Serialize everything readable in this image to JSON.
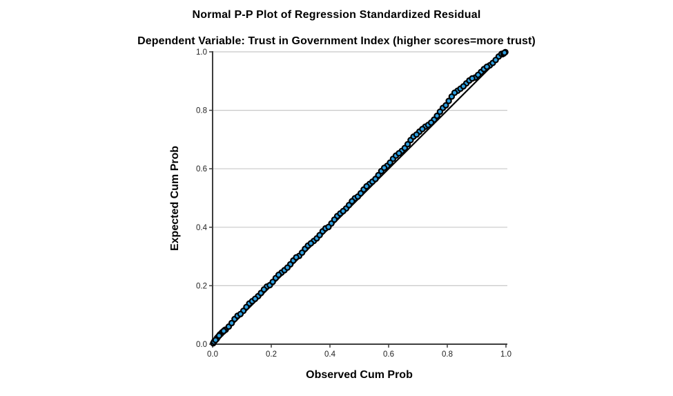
{
  "chart": {
    "title": "Normal P-P Plot of Regression Standardized Residual",
    "subtitle": "Dependent Variable: Trust in Government Index (higher scores=more trust)",
    "xlabel": "Observed Cum Prob",
    "ylabel": "Expected Cum Prob"
  },
  "chart_data": {
    "type": "scatter",
    "title": "Normal P-P Plot of Regression Standardized Residual",
    "subtitle": "Dependent Variable: Trust in Government Index (higher scores=more trust)",
    "xlabel": "Observed Cum Prob",
    "ylabel": "Expected Cum Prob",
    "xlim": [
      0.0,
      1.0
    ],
    "ylim": [
      0.0,
      1.0
    ],
    "x_tick_labels": [
      "0.0",
      "0.2",
      "0.4",
      "0.6",
      "0.8",
      "1.0"
    ],
    "y_tick_labels": [
      "0.0",
      "0.2",
      "0.4",
      "0.6",
      "0.8",
      "1.0"
    ],
    "grid": "horizontal-only",
    "legend": "none",
    "reference_line": {
      "type": "identity",
      "from": [
        0,
        0
      ],
      "to": [
        1,
        1
      ]
    },
    "colors": {
      "marker_fill": "#2d9fe0",
      "marker_stroke": "#000000",
      "reference_line": "#000000",
      "gridline": "#c8c8c8",
      "axis": "#3c3c3c",
      "tick_text": "#1f1f1f",
      "title_text": "#000000",
      "background": "#ffffff"
    },
    "series": [
      {
        "name": "Regression Standardized Residual",
        "points": [
          [
            0.002,
            0.003
          ],
          [
            0.006,
            0.01
          ],
          [
            0.01,
            0.014
          ],
          [
            0.014,
            0.018
          ],
          [
            0.018,
            0.024
          ],
          [
            0.022,
            0.029
          ],
          [
            0.028,
            0.035
          ],
          [
            0.032,
            0.04
          ],
          [
            0.038,
            0.045
          ],
          [
            0.042,
            0.049
          ],
          [
            0.005,
            0.008
          ],
          [
            0.015,
            0.021
          ],
          [
            0.025,
            0.033
          ],
          [
            0.035,
            0.042
          ],
          [
            0.045,
            0.05
          ],
          [
            0.055,
            0.06
          ],
          [
            0.065,
            0.072
          ],
          [
            0.075,
            0.086
          ],
          [
            0.085,
            0.097
          ],
          [
            0.095,
            0.103
          ],
          [
            0.105,
            0.114
          ],
          [
            0.115,
            0.127
          ],
          [
            0.125,
            0.139
          ],
          [
            0.135,
            0.147
          ],
          [
            0.145,
            0.155
          ],
          [
            0.155,
            0.164
          ],
          [
            0.165,
            0.175
          ],
          [
            0.175,
            0.187
          ],
          [
            0.185,
            0.197
          ],
          [
            0.195,
            0.202
          ],
          [
            0.205,
            0.213
          ],
          [
            0.215,
            0.226
          ],
          [
            0.225,
            0.237
          ],
          [
            0.235,
            0.245
          ],
          [
            0.245,
            0.253
          ],
          [
            0.255,
            0.262
          ],
          [
            0.265,
            0.273
          ],
          [
            0.275,
            0.286
          ],
          [
            0.285,
            0.297
          ],
          [
            0.295,
            0.302
          ],
          [
            0.305,
            0.313
          ],
          [
            0.315,
            0.326
          ],
          [
            0.325,
            0.337
          ],
          [
            0.335,
            0.345
          ],
          [
            0.345,
            0.353
          ],
          [
            0.355,
            0.362
          ],
          [
            0.365,
            0.373
          ],
          [
            0.375,
            0.386
          ],
          [
            0.385,
            0.396
          ],
          [
            0.395,
            0.401
          ],
          [
            0.405,
            0.413
          ],
          [
            0.415,
            0.426
          ],
          [
            0.425,
            0.438
          ],
          [
            0.435,
            0.447
          ],
          [
            0.445,
            0.455
          ],
          [
            0.455,
            0.464
          ],
          [
            0.465,
            0.476
          ],
          [
            0.475,
            0.489
          ],
          [
            0.485,
            0.499
          ],
          [
            0.495,
            0.505
          ],
          [
            0.505,
            0.516
          ],
          [
            0.515,
            0.529
          ],
          [
            0.525,
            0.54
          ],
          [
            0.535,
            0.548
          ],
          [
            0.545,
            0.556
          ],
          [
            0.555,
            0.565
          ],
          [
            0.565,
            0.578
          ],
          [
            0.575,
            0.592
          ],
          [
            0.585,
            0.603
          ],
          [
            0.595,
            0.61
          ],
          [
            0.605,
            0.621
          ],
          [
            0.615,
            0.634
          ],
          [
            0.625,
            0.645
          ],
          [
            0.635,
            0.653
          ],
          [
            0.645,
            0.661
          ],
          [
            0.655,
            0.671
          ],
          [
            0.665,
            0.684
          ],
          [
            0.675,
            0.698
          ],
          [
            0.685,
            0.71
          ],
          [
            0.695,
            0.717
          ],
          [
            0.705,
            0.727
          ],
          [
            0.715,
            0.736
          ],
          [
            0.725,
            0.744
          ],
          [
            0.735,
            0.75
          ],
          [
            0.745,
            0.758
          ],
          [
            0.755,
            0.768
          ],
          [
            0.765,
            0.781
          ],
          [
            0.775,
            0.795
          ],
          [
            0.785,
            0.808
          ],
          [
            0.795,
            0.817
          ],
          [
            0.805,
            0.832
          ],
          [
            0.815,
            0.847
          ],
          [
            0.825,
            0.86
          ],
          [
            0.835,
            0.867
          ],
          [
            0.845,
            0.874
          ],
          [
            0.855,
            0.882
          ],
          [
            0.865,
            0.892
          ],
          [
            0.875,
            0.902
          ],
          [
            0.885,
            0.909
          ],
          [
            0.895,
            0.912
          ],
          [
            0.905,
            0.921
          ],
          [
            0.915,
            0.931
          ],
          [
            0.925,
            0.941
          ],
          [
            0.935,
            0.949
          ],
          [
            0.945,
            0.954
          ],
          [
            0.955,
            0.962
          ],
          [
            0.965,
            0.972
          ],
          [
            0.975,
            0.984
          ],
          [
            0.985,
            0.993
          ],
          [
            0.995,
            0.997
          ],
          [
            0.988,
            0.992
          ],
          [
            0.992,
            0.994
          ],
          [
            0.998,
            0.999
          ]
        ]
      }
    ]
  }
}
